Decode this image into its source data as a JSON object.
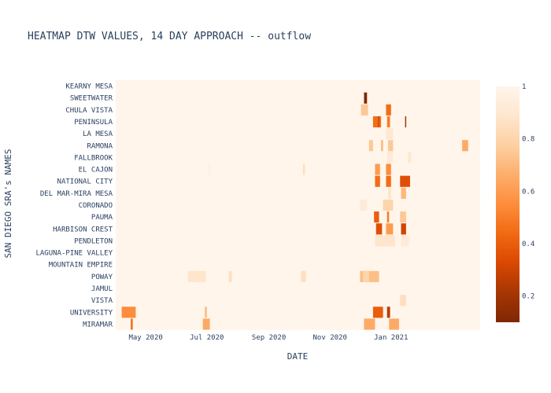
{
  "chart_data": {
    "type": "heatmap",
    "title": "HEATMAP DTW VALUES, 14 DAY APPROACH -- outflow",
    "xlabel": "DATE",
    "ylabel": "SAN DIEGO SRA's NAMES",
    "x_range": [
      "2020-04-01",
      "2021-03-31"
    ],
    "x_ticks": [
      {
        "date": "2020-05-01",
        "label": "May 2020"
      },
      {
        "date": "2020-07-01",
        "label": "Jul 2020"
      },
      {
        "date": "2020-09-01",
        "label": "Sep 2020"
      },
      {
        "date": "2020-11-01",
        "label": "Nov 2020"
      },
      {
        "date": "2021-01-01",
        "label": "Jan 2021"
      }
    ],
    "y_categories": [
      "KEARNY MESA",
      "SWEETWATER",
      "CHULA VISTA",
      "PENINSULA",
      "LA MESA",
      "RAMONA",
      "FALLBROOK",
      "EL CAJON",
      "NATIONAL CITY",
      "DEL MAR-MIRA MESA",
      "CORONADO",
      "PAUMA",
      "HARBISON CREST",
      "PENDLETON",
      "LAGUNA-PINE VALLEY",
      "MOUNTAIN EMPIRE",
      "POWAY",
      "JAMUL",
      "VISTA",
      "UNIVERSITY",
      "MIRAMAR"
    ],
    "colorscale": {
      "range": [
        0.1,
        1
      ],
      "ticks": [
        "1",
        "0.8",
        "0.6",
        "0.4",
        "0.2"
      ],
      "tick_values": [
        1,
        0.8,
        0.6,
        0.4,
        0.2
      ],
      "stops": [
        "#7f2704",
        "#a63603",
        "#d94801",
        "#f16913",
        "#fd8d3c",
        "#fdae6b",
        "#fdd0a2",
        "#fee6ce",
        "#fff5eb"
      ]
    },
    "default_value": 1,
    "cells": [
      {
        "row": "SWEETWATER",
        "start": "2020-12-05",
        "end": "2020-12-08",
        "value": 0.1
      },
      {
        "row": "CHULA VISTA",
        "start": "2020-12-02",
        "end": "2020-12-09",
        "value": 0.75
      },
      {
        "row": "CHULA VISTA",
        "start": "2020-12-27",
        "end": "2021-01-01",
        "value": 0.45
      },
      {
        "row": "PENINSULA",
        "start": "2020-12-14",
        "end": "2020-12-22",
        "value": 0.45
      },
      {
        "row": "PENINSULA",
        "start": "2020-12-19",
        "end": "2020-12-20",
        "value": 0.3
      },
      {
        "row": "PENINSULA",
        "start": "2020-12-28",
        "end": "2020-12-31",
        "value": 0.5
      },
      {
        "row": "PENINSULA",
        "start": "2021-01-15",
        "end": "2021-01-16",
        "value": 0.2
      },
      {
        "row": "LA MESA",
        "start": "2020-12-27",
        "end": "2021-01-03",
        "value": 0.9
      },
      {
        "row": "RAMONA",
        "start": "2020-12-10",
        "end": "2020-12-14",
        "value": 0.75
      },
      {
        "row": "RAMONA",
        "start": "2020-12-22",
        "end": "2020-12-24",
        "value": 0.7
      },
      {
        "row": "RAMONA",
        "start": "2020-12-29",
        "end": "2021-01-03",
        "value": 0.75
      },
      {
        "row": "RAMONA",
        "start": "2021-03-13",
        "end": "2021-03-19",
        "value": 0.65
      },
      {
        "row": "FALLBROOK",
        "start": "2020-12-28",
        "end": "2021-01-03",
        "value": 0.92
      },
      {
        "row": "FALLBROOK",
        "start": "2021-01-18",
        "end": "2021-01-21",
        "value": 0.9
      },
      {
        "row": "EL CAJON",
        "start": "2020-07-03",
        "end": "2020-07-04",
        "value": 0.93
      },
      {
        "row": "EL CAJON",
        "start": "2020-10-05",
        "end": "2020-10-07",
        "value": 0.85
      },
      {
        "row": "EL CAJON",
        "start": "2020-12-16",
        "end": "2020-12-21",
        "value": 0.6
      },
      {
        "row": "EL CAJON",
        "start": "2020-12-27",
        "end": "2021-01-01",
        "value": 0.55
      },
      {
        "row": "NATIONAL CITY",
        "start": "2020-12-16",
        "end": "2020-12-21",
        "value": 0.45
      },
      {
        "row": "NATIONAL CITY",
        "start": "2020-12-27",
        "end": "2021-01-01",
        "value": 0.45
      },
      {
        "row": "NATIONAL CITY",
        "start": "2021-01-10",
        "end": "2021-01-20",
        "value": 0.35
      },
      {
        "row": "DEL MAR-MIRA MESA",
        "start": "2020-12-29",
        "end": "2021-01-01",
        "value": 0.88
      },
      {
        "row": "DEL MAR-MIRA MESA",
        "start": "2021-01-11",
        "end": "2021-01-16",
        "value": 0.7
      },
      {
        "row": "CORONADO",
        "start": "2020-12-01",
        "end": "2020-12-08",
        "value": 0.92
      },
      {
        "row": "CORONADO",
        "start": "2020-12-24",
        "end": "2021-01-03",
        "value": 0.8
      },
      {
        "row": "PAUMA",
        "start": "2020-12-15",
        "end": "2020-12-20",
        "value": 0.4
      },
      {
        "row": "PAUMA",
        "start": "2020-12-28",
        "end": "2020-12-30",
        "value": 0.5
      },
      {
        "row": "PAUMA",
        "start": "2021-01-10",
        "end": "2021-01-16",
        "value": 0.75
      },
      {
        "row": "HARBISON CREST",
        "start": "2020-12-17",
        "end": "2020-12-23",
        "value": 0.35
      },
      {
        "row": "HARBISON CREST",
        "start": "2020-12-27",
        "end": "2021-01-03",
        "value": 0.6
      },
      {
        "row": "HARBISON CREST",
        "start": "2021-01-11",
        "end": "2021-01-16",
        "value": 0.3
      },
      {
        "row": "PENDLETON",
        "start": "2020-12-16",
        "end": "2021-01-05",
        "value": 0.88
      },
      {
        "row": "PENDLETON",
        "start": "2021-01-11",
        "end": "2021-01-19",
        "value": 0.92
      },
      {
        "row": "POWAY",
        "start": "2020-12-01",
        "end": "2020-12-20",
        "value": 0.72
      },
      {
        "row": "POWAY",
        "start": "2020-12-04",
        "end": "2020-12-10",
        "value": 0.8
      },
      {
        "row": "POWAY",
        "start": "2020-06-12",
        "end": "2020-06-30",
        "value": 0.88
      },
      {
        "row": "POWAY",
        "start": "2020-07-23",
        "end": "2020-07-26",
        "value": 0.85
      },
      {
        "row": "POWAY",
        "start": "2020-10-03",
        "end": "2020-10-08",
        "value": 0.85
      },
      {
        "row": "VISTA",
        "start": "2021-01-10",
        "end": "2021-01-16",
        "value": 0.85
      },
      {
        "row": "UNIVERSITY",
        "start": "2020-04-07",
        "end": "2020-04-21",
        "value": 0.55
      },
      {
        "row": "UNIVERSITY",
        "start": "2020-12-14",
        "end": "2020-12-24",
        "value": 0.4
      },
      {
        "row": "UNIVERSITY",
        "start": "2020-12-28",
        "end": "2020-12-31",
        "value": 0.25
      },
      {
        "row": "UNIVERSITY",
        "start": "2020-06-29",
        "end": "2020-07-01",
        "value": 0.7
      },
      {
        "row": "MIRAMAR",
        "start": "2020-04-16",
        "end": "2020-04-18",
        "value": 0.45
      },
      {
        "row": "MIRAMAR",
        "start": "2020-06-27",
        "end": "2020-07-04",
        "value": 0.65
      },
      {
        "row": "MIRAMAR",
        "start": "2020-12-05",
        "end": "2020-12-16",
        "value": 0.65
      },
      {
        "row": "MIRAMAR",
        "start": "2020-12-30",
        "end": "2021-01-09",
        "value": 0.65
      }
    ]
  }
}
